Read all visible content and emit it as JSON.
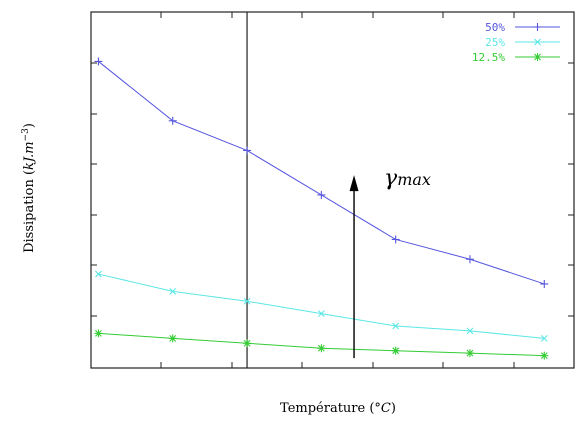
{
  "chart_data": {
    "type": "line",
    "x": [
      1,
      2,
      3,
      4,
      5,
      6,
      7
    ],
    "series": [
      {
        "name": "50%",
        "color": "#5555dd",
        "marker": "plus",
        "values": [
          62,
          50,
          44,
          35,
          26,
          22,
          17
        ]
      },
      {
        "name": "25%",
        "color": "#5ce6e6",
        "marker": "x",
        "values": [
          19,
          15.5,
          13.5,
          11,
          8.5,
          7.5,
          6
        ]
      },
      {
        "name": "12.5%",
        "color": "#33cc33",
        "marker": "star",
        "values": [
          7,
          6,
          5,
          4,
          3.5,
          3,
          2.5
        ]
      }
    ],
    "xlabel": "Température (°C)",
    "ylabel": "Dissipation (kJ.m⁻³)",
    "xlim": [
      0.9,
      7.4
    ],
    "ylim": [
      0,
      72
    ],
    "grid": false,
    "legend": "top-right",
    "annotations": [
      {
        "text": "γmax",
        "type": "arrow-up",
        "x": 4.44,
        "y_from": 2,
        "y_to": 39
      }
    ],
    "x_tick_labels_shown": false,
    "y_tick_labels_shown": false,
    "vertical_line_x": 3
  }
}
